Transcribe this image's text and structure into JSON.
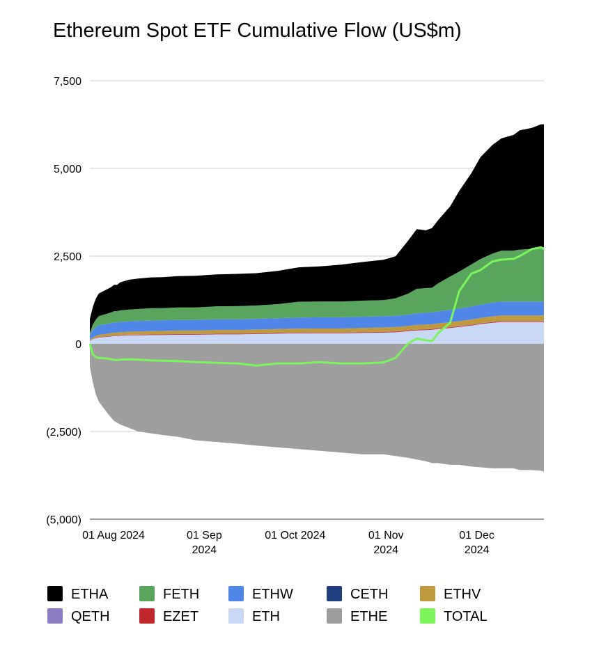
{
  "chart_data": {
    "type": "area",
    "title": "Ethereum Spot ETF Cumulative Flow (US$m)",
    "xlabel": "",
    "ylabel": "",
    "ylim": [
      -5000,
      7500
    ],
    "y_ticks": [
      {
        "value": 7500,
        "label": "7,500"
      },
      {
        "value": 5000,
        "label": "5,000"
      },
      {
        "value": 2500,
        "label": "2,500"
      },
      {
        "value": 0,
        "label": "0"
      },
      {
        "value": -2500,
        "label": "(2,500)"
      },
      {
        "value": -5000,
        "label": "(5,000)"
      }
    ],
    "x_ticks": [
      {
        "date": "2024-07-23",
        "lines": [
          "01 Aug 2024"
        ]
      },
      {
        "date": "2024-08-22",
        "lines": [
          "01 Sep",
          "2024"
        ]
      },
      {
        "date": "2024-09-21",
        "lines": [
          "01 Oct 2024"
        ]
      },
      {
        "date": "2024-10-21",
        "lines": [
          "01 Nov",
          "2024"
        ]
      },
      {
        "date": "2024-11-20",
        "lines": [
          "01 Dec",
          "2024"
        ]
      }
    ],
    "grid": true,
    "legend_position": "bottom",
    "x": [
      "2024-07-23",
      "2024-07-24",
      "2024-07-25",
      "2024-07-26",
      "2024-07-29",
      "2024-07-30",
      "2024-07-31",
      "2024-08-01",
      "2024-08-02",
      "2024-08-05",
      "2024-08-08",
      "2024-08-12",
      "2024-08-16",
      "2024-08-21",
      "2024-08-27",
      "2024-09-03",
      "2024-09-10",
      "2024-09-16",
      "2024-09-23",
      "2024-09-30",
      "2024-10-07",
      "2024-10-14",
      "2024-10-21",
      "2024-10-28",
      "2024-11-01",
      "2024-11-05",
      "2024-11-08",
      "2024-11-11",
      "2024-11-13",
      "2024-11-15",
      "2024-11-19",
      "2024-11-22",
      "2024-11-26",
      "2024-11-29",
      "2024-12-03",
      "2024-12-06",
      "2024-12-10",
      "2024-12-12",
      "2024-12-16",
      "2024-12-19",
      "2024-12-20"
    ],
    "series": [
      {
        "name": "ETHE",
        "color": "#9e9e9e",
        "values": [
          -650,
          -1100,
          -1450,
          -1650,
          -2000,
          -2100,
          -2200,
          -2250,
          -2300,
          -2400,
          -2500,
          -2550,
          -2600,
          -2650,
          -2750,
          -2800,
          -2850,
          -2900,
          -2950,
          -3000,
          -3050,
          -3100,
          -3150,
          -3150,
          -3200,
          -3250,
          -3300,
          -3350,
          -3400,
          -3400,
          -3450,
          -3450,
          -3500,
          -3520,
          -3550,
          -3550,
          -3550,
          -3600,
          -3600,
          -3620,
          -3640
        ]
      },
      {
        "name": "ETH",
        "color": "#c9d8f5",
        "values": [
          80,
          130,
          160,
          180,
          200,
          210,
          220,
          220,
          230,
          240,
          240,
          250,
          250,
          260,
          260,
          270,
          270,
          280,
          290,
          300,
          300,
          300,
          310,
          320,
          330,
          360,
          380,
          390,
          400,
          420,
          450,
          480,
          520,
          560,
          600,
          620,
          620,
          620,
          620,
          620,
          620
        ]
      },
      {
        "name": "EZET",
        "color": "#c0282d",
        "values": [
          5,
          8,
          10,
          12,
          15,
          15,
          15,
          15,
          16,
          16,
          16,
          17,
          17,
          17,
          17,
          18,
          18,
          18,
          18,
          18,
          19,
          19,
          19,
          19,
          20,
          20,
          20,
          20,
          20,
          20,
          20,
          20,
          20,
          20,
          20,
          20,
          20,
          20,
          20,
          20,
          20
        ]
      },
      {
        "name": "QETH",
        "color": "#8e7cc3",
        "values": [
          2,
          3,
          4,
          5,
          5,
          5,
          5,
          5,
          6,
          6,
          6,
          6,
          6,
          6,
          6,
          6,
          6,
          6,
          7,
          7,
          7,
          7,
          7,
          7,
          7,
          7,
          7,
          7,
          7,
          7,
          7,
          7,
          7,
          7,
          7,
          7,
          7,
          7,
          7,
          7,
          7
        ]
      },
      {
        "name": "ETHV",
        "color": "#bf9a3d",
        "values": [
          20,
          40,
          50,
          60,
          70,
          75,
          80,
          80,
          80,
          85,
          90,
          90,
          95,
          95,
          95,
          100,
          100,
          100,
          105,
          110,
          110,
          110,
          115,
          120,
          120,
          120,
          130,
          130,
          130,
          135,
          140,
          140,
          145,
          150,
          155,
          160,
          160,
          160,
          160,
          160,
          160
        ]
      },
      {
        "name": "CETH",
        "color": "#1f3f7f",
        "values": [
          0,
          0,
          0,
          0,
          0,
          0,
          0,
          0,
          0,
          0,
          0,
          0,
          0,
          0,
          0,
          0,
          0,
          0,
          0,
          0,
          0,
          0,
          0,
          0,
          0,
          0,
          0,
          0,
          0,
          0,
          0,
          0,
          0,
          0,
          0,
          0,
          0,
          0,
          0,
          0,
          0
        ]
      },
      {
        "name": "ETHW",
        "color": "#4f86e8",
        "values": [
          150,
          220,
          250,
          270,
          280,
          280,
          290,
          290,
          290,
          295,
          300,
          300,
          300,
          300,
          300,
          305,
          305,
          310,
          310,
          315,
          320,
          320,
          320,
          320,
          320,
          320,
          330,
          340,
          340,
          340,
          350,
          360,
          370,
          380,
          390,
          400,
          400,
          400,
          400,
          400,
          400
        ]
      },
      {
        "name": "FETH",
        "color": "#5aa55d",
        "values": [
          50,
          150,
          220,
          260,
          300,
          310,
          320,
          320,
          330,
          335,
          340,
          350,
          350,
          360,
          360,
          370,
          375,
          380,
          400,
          450,
          450,
          450,
          460,
          460,
          500,
          600,
          700,
          700,
          700,
          800,
          950,
          1050,
          1200,
          1300,
          1400,
          1450,
          1450,
          1480,
          1500,
          1550,
          1550
        ]
      },
      {
        "name": "ETHA",
        "color": "#000000",
        "values": [
          400,
          500,
          600,
          650,
          700,
          720,
          750,
          750,
          800,
          850,
          870,
          880,
          880,
          890,
          900,
          910,
          920,
          920,
          950,
          980,
          1000,
          1050,
          1100,
          1150,
          1200,
          1500,
          1700,
          1650,
          1700,
          1800,
          2000,
          2300,
          2600,
          2900,
          3100,
          3200,
          3300,
          3400,
          3450,
          3500,
          3500
        ]
      }
    ],
    "total": {
      "name": "TOTAL",
      "color": "#7cf55c",
      "values": [
        0,
        -300,
        -380,
        -400,
        -420,
        -440,
        -460,
        -460,
        -450,
        -440,
        -450,
        -470,
        -480,
        -490,
        -520,
        -540,
        -560,
        -620,
        -560,
        -560,
        -520,
        -560,
        -560,
        -530,
        -400,
        0,
        150,
        100,
        80,
        300,
        600,
        1500,
        2000,
        2100,
        2350,
        2400,
        2420,
        2500,
        2700,
        2750,
        2700
      ]
    },
    "legend": [
      {
        "name": "ETHA",
        "color": "#000000"
      },
      {
        "name": "FETH",
        "color": "#5aa55d"
      },
      {
        "name": "ETHW",
        "color": "#4f86e8"
      },
      {
        "name": "CETH",
        "color": "#1f3f7f"
      },
      {
        "name": "ETHV",
        "color": "#bf9a3d"
      },
      {
        "name": "QETH",
        "color": "#8e7cc3"
      },
      {
        "name": "EZET",
        "color": "#c0282d"
      },
      {
        "name": "ETH",
        "color": "#c9d8f5"
      },
      {
        "name": "ETHE",
        "color": "#9e9e9e"
      },
      {
        "name": "TOTAL",
        "color": "#7cf55c"
      }
    ]
  }
}
